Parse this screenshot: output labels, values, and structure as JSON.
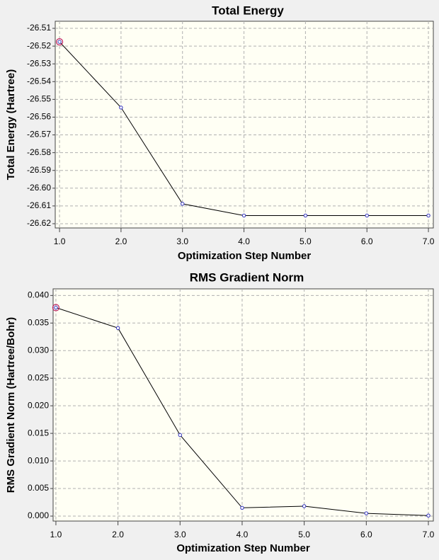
{
  "chart_data": [
    {
      "type": "line",
      "title": "Total Energy",
      "x_label": "Optimization Step Number",
      "y_label": "Total Energy (Hartree)",
      "x": [
        1,
        2,
        3,
        4,
        5,
        6,
        7
      ],
      "series": [
        {
          "color": "#000000",
          "marker_color": "#3030c0",
          "values": [
            -26.5176,
            -26.5546,
            -26.6088,
            -26.6154,
            -26.6154,
            -26.6154,
            -26.6154
          ]
        }
      ],
      "highlight_color": "#c02060",
      "xlim": [
        0.93,
        7.08
      ],
      "ylim": [
        -26.6224,
        -26.506
      ],
      "xticks": [
        {
          "value": 1,
          "label": "1.0"
        },
        {
          "value": 2,
          "label": "2.0"
        },
        {
          "value": 3,
          "label": "3.0"
        },
        {
          "value": 4,
          "label": "4.0"
        },
        {
          "value": 5,
          "label": "5.0"
        },
        {
          "value": 6,
          "label": "6.0"
        },
        {
          "value": 7,
          "label": "7.0"
        }
      ],
      "yticks": [
        -26.51,
        -26.52,
        -26.53,
        -26.54,
        -26.55,
        -26.56,
        -26.57,
        -26.58,
        -26.59,
        {
          "value": -26.6,
          "label": "-26.60"
        },
        -26.61,
        -26.62
      ],
      "grid": true
    },
    {
      "type": "line",
      "title": "RMS Gradient Norm",
      "x_label": "Optimization Step Number",
      "y_label": "RMS Gradient Norm (Hartree/Bohr)",
      "x": [
        1,
        2,
        3,
        4,
        5,
        6,
        7
      ],
      "series": [
        {
          "color": "#000000",
          "marker_color": "#3030c0",
          "values": [
            0.0378,
            0.0341,
            0.0147,
            0.0015,
            0.0018,
            0.0005,
            0.0001
          ]
        }
      ],
      "highlight_color": "#c02060",
      "xlim": [
        0.955,
        7.08
      ],
      "ylim": [
        -0.0009,
        0.0412
      ],
      "xticks": [
        {
          "value": 1,
          "label": "1.0"
        },
        {
          "value": 2,
          "label": "2.0"
        },
        {
          "value": 3,
          "label": "3.0"
        },
        {
          "value": 4,
          "label": "4.0"
        },
        {
          "value": 5,
          "label": "5.0"
        },
        {
          "value": 6,
          "label": "6.0"
        },
        {
          "value": 7,
          "label": "7.0"
        }
      ],
      "yticks": [
        {
          "value": 0,
          "label": "0.000"
        },
        0.005,
        {
          "value": 0.01,
          "label": "0.010"
        },
        0.015,
        {
          "value": 0.02,
          "label": "0.020"
        },
        0.025,
        {
          "value": 0.03,
          "label": "0.030"
        },
        0.035,
        {
          "value": 0.04,
          "label": "0.040"
        }
      ],
      "grid": true
    }
  ]
}
